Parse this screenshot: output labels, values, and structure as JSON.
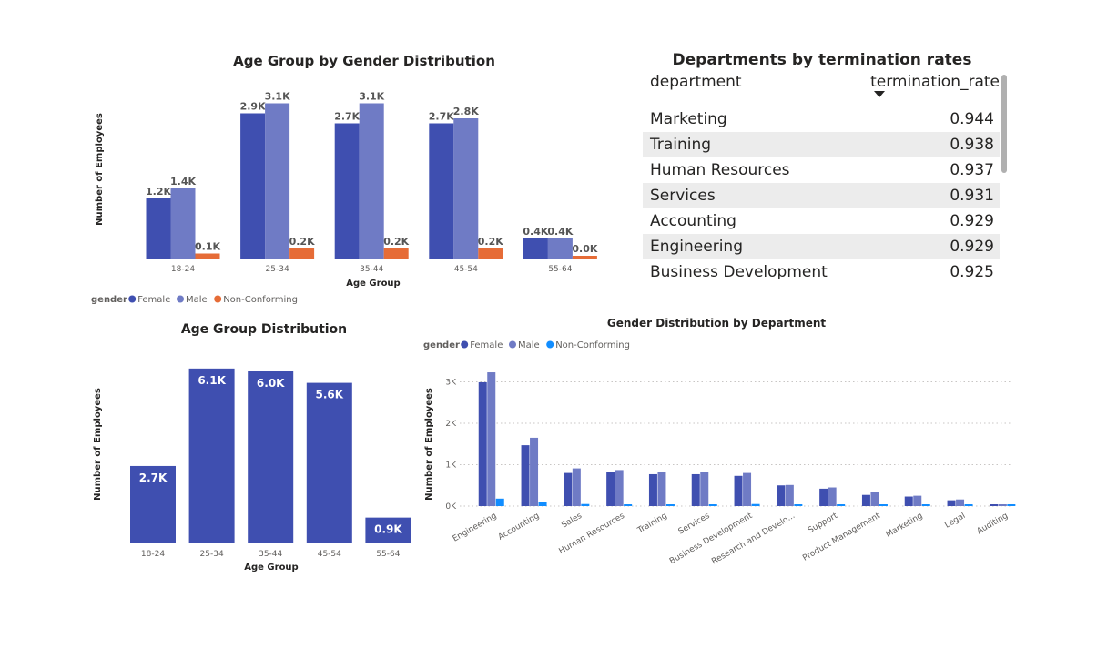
{
  "chart_data": [
    {
      "type": "bar",
      "title": "Age Group by Gender Distribution",
      "xlabel": "Age Group",
      "ylabel": "Number of Employees",
      "categories": [
        "18-24",
        "25-34",
        "35-44",
        "45-54",
        "55-64"
      ],
      "legend_title": "gender",
      "legend_position": "bottom-left",
      "series": [
        {
          "name": "Female",
          "color": "#3f4fb0",
          "values": [
            1.2,
            2.9,
            2.7,
            2.7,
            0.4
          ],
          "labels": [
            "1.2K",
            "2.9K",
            "2.7K",
            "2.7K",
            "0.4K"
          ]
        },
        {
          "name": "Male",
          "color": "#6f7bc5",
          "values": [
            1.4,
            3.1,
            3.1,
            2.8,
            0.4
          ],
          "labels": [
            "1.4K",
            "3.1K",
            "3.1K",
            "2.8K",
            "0.4K"
          ]
        },
        {
          "name": "Non-Conforming",
          "color": "#e66c37",
          "values": [
            0.1,
            0.2,
            0.2,
            0.2,
            0.0
          ],
          "labels": [
            "0.1K",
            "0.2K",
            "0.2K",
            "0.2K",
            "0.0K"
          ]
        }
      ],
      "unit": "K",
      "grid": false
    },
    {
      "type": "bar",
      "title": "Age Group Distribution",
      "xlabel": "Age Group",
      "ylabel": "Number of Employees",
      "categories": [
        "18-24",
        "25-34",
        "35-44",
        "45-54",
        "55-64"
      ],
      "series": [
        {
          "color": "#3f4fb0",
          "values": [
            2.7,
            6.1,
            6.0,
            5.6,
            0.9
          ],
          "labels": [
            "2.7K",
            "6.1K",
            "6.0K",
            "5.6K",
            "0.9K"
          ]
        }
      ],
      "unit": "K",
      "grid": false
    },
    {
      "type": "bar",
      "title": "Gender Distribution by Department",
      "xlabel": "",
      "ylabel": "Number of Employees",
      "categories": [
        "Engineering",
        "Accounting",
        "Sales",
        "Human Resources",
        "Training",
        "Services",
        "Business Development",
        "Research and Develo...",
        "Support",
        "Product Management",
        "Marketing",
        "Legal",
        "Auditing"
      ],
      "legend_title": "gender",
      "legend_position": "top-left",
      "yticks": [
        "0K",
        "1K",
        "2K",
        "3K"
      ],
      "ylim": [
        0,
        3.3
      ],
      "grid": true,
      "series": [
        {
          "name": "Female",
          "color": "#3f4fb0",
          "values": [
            2.99,
            1.47,
            0.8,
            0.82,
            0.77,
            0.77,
            0.73,
            0.5,
            0.42,
            0.27,
            0.23,
            0.14,
            0.03
          ]
        },
        {
          "name": "Male",
          "color": "#6f7bc5",
          "values": [
            3.23,
            1.65,
            0.91,
            0.87,
            0.82,
            0.82,
            0.8,
            0.51,
            0.45,
            0.34,
            0.25,
            0.16,
            0.03
          ]
        },
        {
          "name": "Non-Conforming",
          "color": "#118dff",
          "values": [
            0.18,
            0.095,
            0.05,
            0.04,
            0.04,
            0.03,
            0.05,
            0.03,
            0.03,
            0.01,
            0.01,
            0.01,
            0.0
          ]
        }
      ],
      "unit": "K"
    }
  ],
  "table": {
    "title": "Departments by termination rates",
    "columns": [
      "department",
      "termination_rate"
    ],
    "rows": [
      [
        "Marketing",
        "0.944"
      ],
      [
        "Training",
        "0.938"
      ],
      [
        "Human Resources",
        "0.937"
      ],
      [
        "Services",
        "0.931"
      ],
      [
        "Accounting",
        "0.929"
      ],
      [
        "Engineering",
        "0.929"
      ],
      [
        "Business Development",
        "0.925"
      ]
    ]
  }
}
